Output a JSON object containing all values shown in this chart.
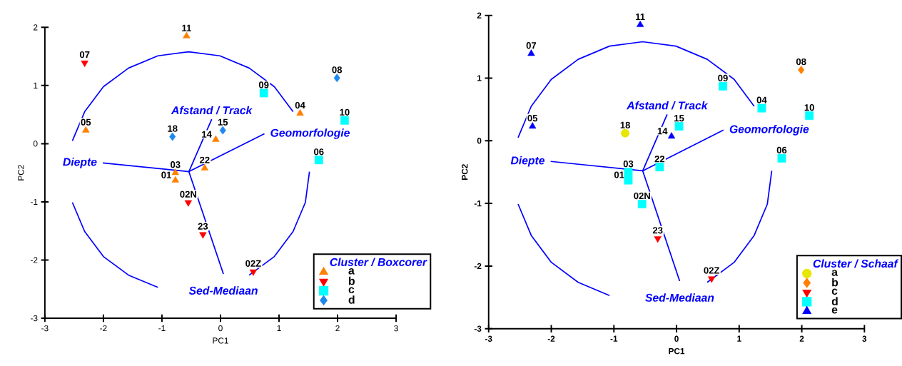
{
  "chart_data": [
    {
      "type": "scatter",
      "xlabel": "PC1",
      "ylabel": "PC2",
      "xlim": [
        -3,
        3
      ],
      "ylim": [
        -3,
        2
      ],
      "xticks": [
        -3,
        -2,
        -1,
        0,
        1,
        2,
        3
      ],
      "yticks": [
        -3,
        -2,
        -1,
        0,
        1,
        2
      ],
      "legend": "bottom right",
      "legend_title": "Cluster / Boxcorer",
      "series": [
        {
          "name": "a",
          "color": "#ff8000",
          "marker": "triangle",
          "x": [
            -0.58,
            -2.3,
            -0.08,
            -0.27,
            -0.77,
            -0.77,
            1.36
          ],
          "values": [
            1.85,
            0.23,
            0.07,
            -0.42,
            -0.5,
            -0.63,
            0.52
          ]
        },
        {
          "name": "b",
          "color": "#ff0000",
          "marker": "triangle-down",
          "x": [
            -2.32,
            -0.55,
            -0.3,
            0.56
          ],
          "values": [
            1.39,
            -1.01,
            -1.56,
            -2.2
          ]
        },
        {
          "name": "c",
          "color": "#00ffff",
          "marker": "square",
          "x": [
            0.74,
            2.12,
            1.68
          ],
          "values": [
            0.87,
            0.4,
            -0.28
          ]
        },
        {
          "name": "d",
          "color": "#1e88f0",
          "marker": "diamond",
          "x": [
            -0.82,
            0.04,
            1.99
          ],
          "values": [
            0.12,
            0.23,
            1.13
          ]
        },
        {
          "type": "line",
          "name": "Diepte",
          "color": "#0000ff",
          "x": [
            -0.54,
            -2.01
          ],
          "values": [
            -0.48,
            -0.33
          ]
        },
        {
          "type": "line",
          "name": "Afstand / Track",
          "color": "#0000ff",
          "x": [
            -0.54,
            -0.15
          ],
          "values": [
            -0.48,
            0.42
          ]
        },
        {
          "type": "line",
          "name": "Geomorfologie",
          "color": "#0000ff",
          "x": [
            -0.54,
            0.75
          ],
          "values": [
            -0.48,
            0.17
          ]
        },
        {
          "type": "line",
          "name": "Sed-Mediaan",
          "color": "#0000ff",
          "x": [
            -0.54,
            0.05
          ],
          "values": [
            -0.48,
            -2.24
          ]
        },
        {
          "type": "line",
          "color": "#0000ff",
          "x": [
            1.24,
            0.92,
            0.49,
            -0.01,
            -0.54,
            -1.07,
            -1.57,
            -2.0,
            -2.32,
            -2.53
          ],
          "values": [
            0.55,
            0.98,
            1.3,
            1.51,
            1.58,
            1.51,
            1.3,
            0.98,
            0.55,
            0.05
          ]
        },
        {
          "type": "line",
          "color": "#0000ff",
          "x": [
            -2.53,
            -2.32,
            -2.0,
            -1.57,
            -1.07
          ],
          "values": [
            -1.01,
            -1.51,
            -1.94,
            -2.26,
            -2.47
          ]
        },
        {
          "type": "line",
          "color": "#0000ff",
          "x": [
            0.49,
            0.92,
            1.24,
            1.45,
            1.52
          ],
          "values": [
            -2.26,
            -1.94,
            -1.51,
            -1.01,
            -0.48
          ]
        }
      ],
      "annotations": [
        {
          "text": "11",
          "x": -0.58,
          "y": 1.85
        },
        {
          "text": "07",
          "x": -2.32,
          "y": 1.39
        },
        {
          "text": "05",
          "x": -2.3,
          "y": 0.23
        },
        {
          "text": "18",
          "x": -0.82,
          "y": 0.12
        },
        {
          "text": "14",
          "x": -0.08,
          "y": 0.07
        },
        {
          "text": "15",
          "x": 0.04,
          "y": 0.23
        },
        {
          "text": "22",
          "x": -0.27,
          "y": -0.42
        },
        {
          "text": "03",
          "x": -0.77,
          "y": -0.5
        },
        {
          "text": "01",
          "x": -0.77,
          "y": -0.63
        },
        {
          "text": "09",
          "x": 0.74,
          "y": 0.87
        },
        {
          "text": "04",
          "x": 1.36,
          "y": 0.52
        },
        {
          "text": "08",
          "x": 1.99,
          "y": 1.13
        },
        {
          "text": "10",
          "x": 2.12,
          "y": 0.4
        },
        {
          "text": "06",
          "x": 1.68,
          "y": -0.28
        },
        {
          "text": "02N",
          "x": -0.55,
          "y": -1.01
        },
        {
          "text": "23",
          "x": -0.3,
          "y": -1.56
        },
        {
          "text": "02Z",
          "x": 0.56,
          "y": -2.2
        }
      ]
    },
    {
      "type": "scatter",
      "xlabel": "PC1",
      "ylabel": "PC2",
      "xlim": [
        -3,
        3
      ],
      "ylim": [
        -3,
        2
      ],
      "xticks": [
        -3,
        -2,
        -1,
        0,
        1,
        2,
        3
      ],
      "yticks": [
        -3,
        -2,
        -1,
        0,
        1,
        2
      ],
      "legend": "bottom right",
      "legend_title": "Cluster / Schaaf",
      "series": [
        {
          "name": "a",
          "color": "#e6e600",
          "marker": "circle",
          "x": [
            -0.82
          ],
          "values": [
            0.12
          ]
        },
        {
          "name": "b",
          "color": "#ff8000",
          "marker": "diamond",
          "x": [
            1.99
          ],
          "values": [
            1.13
          ]
        },
        {
          "name": "c",
          "color": "#ff0000",
          "marker": "triangle-down",
          "x": [
            -0.3,
            0.56
          ],
          "values": [
            -1.56,
            -2.2
          ]
        },
        {
          "name": "d",
          "color": "#00ffff",
          "marker": "square",
          "x": [
            0.04,
            -0.77,
            -0.77,
            -0.27,
            -0.55,
            0.74,
            1.36,
            2.12,
            1.68
          ],
          "values": [
            0.23,
            -0.5,
            -0.63,
            -0.42,
            -1.01,
            0.87,
            0.52,
            0.4,
            -0.28
          ]
        },
        {
          "name": "e",
          "color": "#0000ff",
          "marker": "triangle",
          "x": [
            -0.58,
            -2.32,
            -2.3,
            -0.08
          ],
          "values": [
            1.85,
            1.39,
            0.23,
            0.07
          ]
        },
        {
          "type": "line",
          "name": "Diepte",
          "color": "#0000ff",
          "x": [
            -0.54,
            -2.01
          ],
          "values": [
            -0.48,
            -0.33
          ]
        },
        {
          "type": "line",
          "name": "Afstand / Track",
          "color": "#0000ff",
          "x": [
            -0.54,
            -0.15
          ],
          "values": [
            -0.48,
            0.42
          ]
        },
        {
          "type": "line",
          "name": "Geomorfologie",
          "color": "#0000ff",
          "x": [
            -0.54,
            0.75
          ],
          "values": [
            -0.48,
            0.17
          ]
        },
        {
          "type": "line",
          "name": "Sed-Mediaan",
          "color": "#0000ff",
          "x": [
            -0.54,
            0.05
          ],
          "values": [
            -0.48,
            -2.24
          ]
        },
        {
          "type": "line",
          "color": "#0000ff",
          "x": [
            1.24,
            0.92,
            0.49,
            -0.01,
            -0.54,
            -1.07,
            -1.57,
            -2.0,
            -2.32,
            -2.53
          ],
          "values": [
            0.55,
            0.98,
            1.3,
            1.51,
            1.58,
            1.51,
            1.3,
            0.98,
            0.55,
            0.05
          ]
        },
        {
          "type": "line",
          "color": "#0000ff",
          "x": [
            -2.53,
            -2.32,
            -2.0,
            -1.57,
            -1.07
          ],
          "values": [
            -1.01,
            -1.51,
            -1.94,
            -2.26,
            -2.47
          ]
        },
        {
          "type": "line",
          "color": "#0000ff",
          "x": [
            0.49,
            0.92,
            1.24,
            1.45,
            1.52
          ],
          "values": [
            -2.26,
            -1.94,
            -1.51,
            -1.01,
            -0.48
          ]
        }
      ],
      "annotations": [
        {
          "text": "11",
          "x": -0.58,
          "y": 1.85
        },
        {
          "text": "07",
          "x": -2.32,
          "y": 1.39
        },
        {
          "text": "05",
          "x": -2.3,
          "y": 0.23
        },
        {
          "text": "18",
          "x": -0.82,
          "y": 0.12
        },
        {
          "text": "14",
          "x": -0.08,
          "y": 0.07
        },
        {
          "text": "15",
          "x": 0.04,
          "y": 0.23
        },
        {
          "text": "22",
          "x": -0.27,
          "y": -0.42
        },
        {
          "text": "03",
          "x": -0.77,
          "y": -0.5
        },
        {
          "text": "01",
          "x": -0.77,
          "y": -0.63
        },
        {
          "text": "09",
          "x": 0.74,
          "y": 0.87
        },
        {
          "text": "04",
          "x": 1.36,
          "y": 0.52
        },
        {
          "text": "08",
          "x": 1.99,
          "y": 1.13
        },
        {
          "text": "10",
          "x": 2.12,
          "y": 0.4
        },
        {
          "text": "06",
          "x": 1.68,
          "y": -0.28
        },
        {
          "text": "02N",
          "x": -0.55,
          "y": -1.01
        },
        {
          "text": "23",
          "x": -0.3,
          "y": -1.56
        },
        {
          "text": "02Z",
          "x": 0.56,
          "y": -2.2
        }
      ]
    }
  ]
}
